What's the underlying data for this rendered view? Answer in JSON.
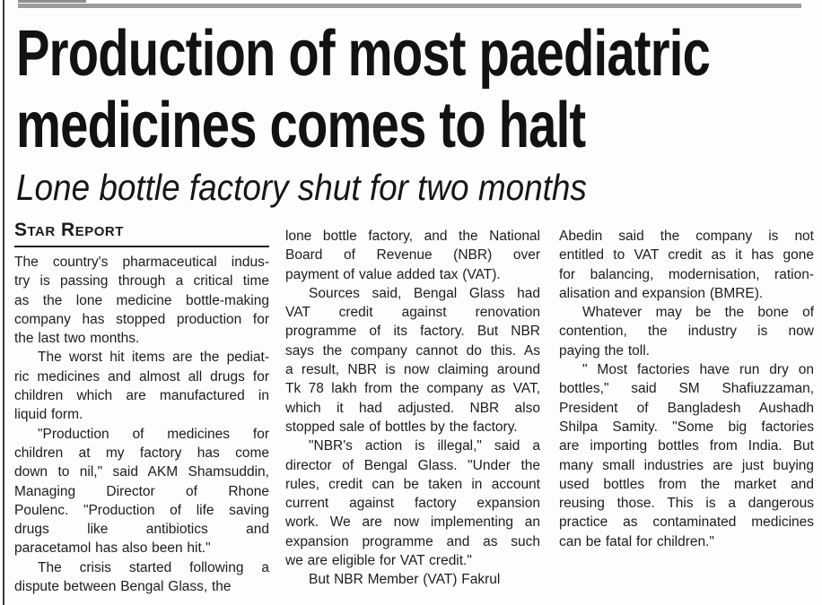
{
  "article": {
    "headline": "Production of most paediatric medicines comes to halt",
    "headline_lines": [
      "Production of most paediatric",
      "medicines comes to halt"
    ],
    "subheadline": "Lone bottle factory shut for two months",
    "byline": "Star Report",
    "colors": {
      "text": "#1d1d1d",
      "headline": "#121212",
      "top_rule": "#9c9c9c",
      "byline_rule": "#1b1b1b"
    },
    "columns": [
      {
        "paragraphs": [
          {
            "indent": false,
            "lines": [
              "The country's pharmaceutical indus-",
              "try is passing through a critical time",
              "as the lone medicine bottle-making",
              "company has stopped production for",
              "the last two months."
            ]
          },
          {
            "indent": true,
            "lines": [
              "The worst hit items are the pediat-",
              "ric medicines and almost all drugs for",
              "children which are manufactured in",
              "liquid form."
            ]
          },
          {
            "indent": true,
            "lines": [
              "\"Production of medicines for",
              "children at my factory has come",
              "down to nil,\" said AKM Shamsuddin,",
              "Managing Director of Rhone",
              "Poulenc. \"Production of life saving",
              "drugs like antibiotics and",
              "paracetamol has also been hit.\""
            ]
          },
          {
            "indent": true,
            "lines": [
              "The crisis started following a",
              "dispute between Bengal Glass, the"
            ]
          }
        ]
      },
      {
        "paragraphs": [
          {
            "indent": false,
            "lines": [
              "lone bottle factory, and the National",
              "Board of Revenue (NBR) over",
              "payment of value added tax (VAT)."
            ]
          },
          {
            "indent": true,
            "lines": [
              "Sources said, Bengal Glass had",
              "VAT credit against renovation",
              "programme of its factory. But NBR",
              "says the company cannot do this. As",
              "a result, NBR is now claiming around",
              "Tk 78 lakh from the company as VAT,",
              "which it had adjusted. NBR also",
              "stopped sale of bottles by the factory."
            ]
          },
          {
            "indent": true,
            "lines": [
              "\"NBR's action is illegal,\" said a",
              "director of Bengal Glass. \"Under the",
              "rules, credit can be taken in account",
              "current against factory expansion",
              "work. We are now implementing an",
              "expansion programme and as such",
              "we are eligible for VAT credit.\""
            ]
          },
          {
            "indent": true,
            "lines": [
              "But NBR Member (VAT) Fakrul"
            ]
          }
        ]
      },
      {
        "paragraphs": [
          {
            "indent": false,
            "lines": [
              "Abedin said the company is not",
              "entitled to VAT credit as it has gone",
              "for balancing, modernisation, ration-",
              "alisation and expansion (BMRE)."
            ]
          },
          {
            "indent": true,
            "lines": [
              "Whatever may be the bone of",
              "contention, the industry is now",
              "paying the toll."
            ]
          },
          {
            "indent": true,
            "lines": [
              "\" Most factories have run dry on",
              "bottles,\" said SM Shafiuzzaman,",
              "President of Bangladesh Aushadh",
              "Shilpa Samity. \"Some big factories",
              "are importing bottles from India. But",
              "many small industries are just buying",
              "used bottles from the market and",
              "reusing those. This is a dangerous",
              "practice as contaminated medicines",
              "can be fatal for children.\""
            ]
          }
        ]
      }
    ]
  }
}
